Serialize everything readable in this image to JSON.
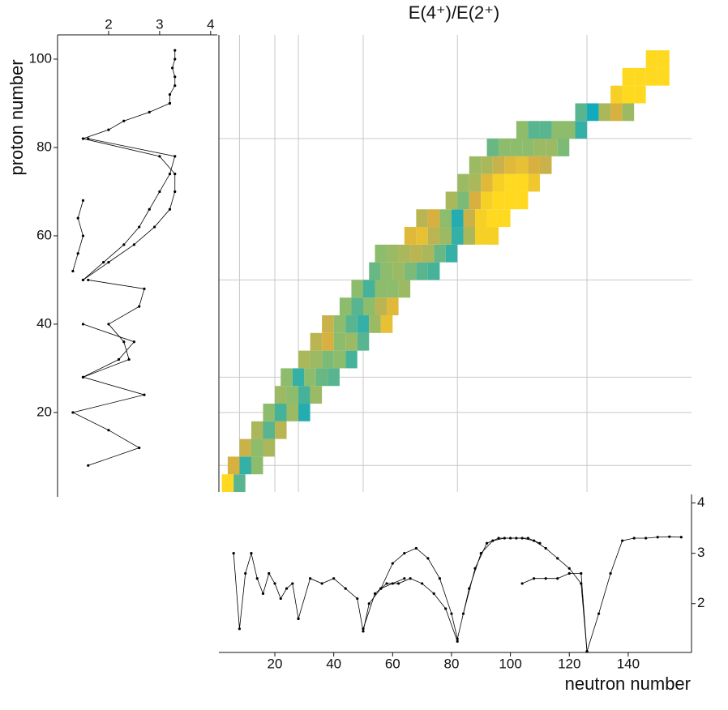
{
  "chart_data": [
    {
      "type": "heatmap",
      "title": "E(4⁺)/E(2⁺)",
      "ylabel": "proton number",
      "xlim": [
        1,
        161.5
      ],
      "ylim": [
        2,
        105.5
      ],
      "yticks": [
        20,
        40,
        60,
        80,
        100
      ],
      "xgrid": [
        8,
        20,
        28,
        50,
        82,
        126
      ],
      "ygrid": [
        8,
        20,
        28,
        50,
        82
      ],
      "colorscale": [
        [
          1.5,
          "#00a8c8"
        ],
        [
          2.3,
          "#8cbc6c"
        ],
        [
          2.8,
          "#d8b040"
        ],
        [
          3.3,
          "#ffd820"
        ]
      ],
      "cells": [
        [
          4,
          4,
          3.3
        ],
        [
          8,
          4,
          2.0
        ],
        [
          6,
          8,
          2.8
        ],
        [
          10,
          8,
          1.8
        ],
        [
          14,
          8,
          2.3
        ],
        [
          10,
          12,
          2.7
        ],
        [
          14,
          12,
          2.3
        ],
        [
          18,
          12,
          2.5
        ],
        [
          14,
          16,
          2.5
        ],
        [
          18,
          16,
          2.0
        ],
        [
          22,
          16,
          2.6
        ],
        [
          18,
          20,
          2.3
        ],
        [
          22,
          20,
          1.9
        ],
        [
          26,
          20,
          2.4
        ],
        [
          30,
          20,
          1.7
        ],
        [
          22,
          24,
          2.4
        ],
        [
          26,
          24,
          2.3
        ],
        [
          30,
          24,
          1.9
        ],
        [
          34,
          24,
          2.4
        ],
        [
          24,
          28,
          2.3
        ],
        [
          28,
          28,
          1.8
        ],
        [
          32,
          28,
          2.3
        ],
        [
          36,
          28,
          2.1
        ],
        [
          40,
          28,
          2.0
        ],
        [
          30,
          32,
          2.5
        ],
        [
          34,
          32,
          2.4
        ],
        [
          38,
          32,
          2.2
        ],
        [
          42,
          32,
          2.3
        ],
        [
          46,
          32,
          1.9
        ],
        [
          34,
          36,
          2.6
        ],
        [
          38,
          36,
          2.8
        ],
        [
          42,
          36,
          2.3
        ],
        [
          46,
          36,
          2.4
        ],
        [
          50,
          36,
          2.0
        ],
        [
          38,
          40,
          2.7
        ],
        [
          42,
          40,
          2.3
        ],
        [
          46,
          40,
          2.0
        ],
        [
          50,
          40,
          1.8
        ],
        [
          54,
          40,
          2.4
        ],
        [
          58,
          40,
          3.0
        ],
        [
          44,
          44,
          2.3
        ],
        [
          48,
          44,
          2.0
        ],
        [
          52,
          44,
          2.3
        ],
        [
          56,
          44,
          2.6
        ],
        [
          60,
          44,
          2.9
        ],
        [
          48,
          48,
          2.3
        ],
        [
          52,
          48,
          1.9
        ],
        [
          56,
          48,
          2.3
        ],
        [
          60,
          48,
          2.3
        ],
        [
          64,
          48,
          2.4
        ],
        [
          54,
          52,
          2.1
        ],
        [
          58,
          52,
          2.3
        ],
        [
          62,
          52,
          2.4
        ],
        [
          66,
          52,
          2.2
        ],
        [
          70,
          52,
          2.0
        ],
        [
          74,
          52,
          1.9
        ],
        [
          56,
          56,
          2.3
        ],
        [
          60,
          56,
          2.4
        ],
        [
          64,
          56,
          2.5
        ],
        [
          68,
          56,
          2.6
        ],
        [
          72,
          56,
          2.5
        ],
        [
          76,
          56,
          2.1
        ],
        [
          80,
          56,
          1.8
        ],
        [
          66,
          60,
          2.9
        ],
        [
          70,
          60,
          3.0
        ],
        [
          74,
          60,
          2.6
        ],
        [
          78,
          60,
          2.4
        ],
        [
          82,
          60,
          1.8
        ],
        [
          86,
          60,
          2.5
        ],
        [
          90,
          60,
          3.2
        ],
        [
          94,
          60,
          3.2
        ],
        [
          70,
          64,
          2.6
        ],
        [
          74,
          64,
          2.8
        ],
        [
          78,
          64,
          2.3
        ],
        [
          82,
          64,
          1.7
        ],
        [
          86,
          64,
          2.7
        ],
        [
          90,
          64,
          3.2
        ],
        [
          94,
          64,
          3.3
        ],
        [
          98,
          64,
          3.3
        ],
        [
          80,
          68,
          2.5
        ],
        [
          84,
          68,
          2.2
        ],
        [
          88,
          68,
          2.8
        ],
        [
          92,
          68,
          3.2
        ],
        [
          96,
          68,
          3.3
        ],
        [
          100,
          68,
          3.3
        ],
        [
          104,
          68,
          3.3
        ],
        [
          84,
          72,
          2.4
        ],
        [
          88,
          72,
          2.5
        ],
        [
          92,
          72,
          2.9
        ],
        [
          96,
          72,
          3.2
        ],
        [
          100,
          72,
          3.3
        ],
        [
          104,
          72,
          3.3
        ],
        [
          108,
          72,
          3.1
        ],
        [
          88,
          76,
          2.4
        ],
        [
          92,
          76,
          2.5
        ],
        [
          96,
          76,
          2.7
        ],
        [
          100,
          76,
          2.9
        ],
        [
          104,
          76,
          3.0
        ],
        [
          108,
          76,
          2.8
        ],
        [
          112,
          76,
          2.7
        ],
        [
          94,
          80,
          2.1
        ],
        [
          98,
          80,
          2.3
        ],
        [
          102,
          80,
          2.3
        ],
        [
          106,
          80,
          2.3
        ],
        [
          110,
          80,
          2.4
        ],
        [
          114,
          80,
          2.4
        ],
        [
          118,
          80,
          2.2
        ],
        [
          104,
          84,
          2.3
        ],
        [
          108,
          84,
          2.0
        ],
        [
          112,
          84,
          2.0
        ],
        [
          116,
          84,
          2.3
        ],
        [
          120,
          84,
          2.3
        ],
        [
          124,
          84,
          1.8
        ],
        [
          124,
          88,
          2.0
        ],
        [
          128,
          88,
          1.6
        ],
        [
          132,
          88,
          2.5
        ],
        [
          136,
          88,
          2.8
        ],
        [
          140,
          88,
          2.4
        ],
        [
          136,
          92,
          3.2
        ],
        [
          140,
          92,
          3.3
        ],
        [
          144,
          92,
          3.3
        ],
        [
          140,
          96,
          3.3
        ],
        [
          144,
          96,
          3.3
        ],
        [
          148,
          96,
          3.3
        ],
        [
          152,
          96,
          3.3
        ],
        [
          148,
          100,
          3.3
        ],
        [
          152,
          100,
          3.3
        ]
      ]
    },
    {
      "type": "line",
      "xlabel": "neutron number",
      "xlim": [
        1,
        161.5
      ],
      "xticks": [
        20,
        40,
        60,
        80,
        100,
        120,
        140
      ],
      "y2lim": [
        1.03,
        4.17
      ],
      "y2ticks": [
        2,
        3,
        4
      ],
      "color": "#000000",
      "series": [
        {
          "x": [
            6,
            8,
            10,
            12,
            14,
            16,
            18,
            20,
            22,
            24,
            26,
            28
          ],
          "values": [
            3.0,
            1.5,
            2.6,
            3.0,
            2.5,
            2.2,
            2.6,
            2.4,
            2.1,
            2.3,
            2.4,
            1.7
          ]
        },
        {
          "x": [
            28,
            32,
            36,
            40,
            44,
            48,
            50,
            52,
            56,
            60,
            64
          ],
          "values": [
            1.7,
            2.5,
            2.4,
            2.5,
            2.3,
            2.1,
            1.45,
            2.0,
            2.3,
            2.4,
            2.5
          ]
        },
        {
          "x": [
            50,
            54,
            58,
            62,
            66,
            70,
            74,
            78,
            82
          ],
          "values": [
            1.5,
            2.2,
            2.4,
            2.4,
            2.5,
            2.4,
            2.2,
            1.9,
            1.25
          ]
        },
        {
          "x": [
            56,
            60,
            64,
            68,
            72,
            76,
            80,
            82,
            86,
            90,
            94,
            98,
            102,
            106,
            110
          ],
          "values": [
            2.3,
            2.8,
            3.0,
            3.1,
            2.9,
            2.5,
            1.8,
            1.3,
            2.3,
            3.0,
            3.25,
            3.3,
            3.3,
            3.3,
            3.2
          ]
        },
        {
          "x": [
            84,
            88,
            92,
            96,
            100,
            104,
            108,
            112,
            116,
            120,
            124,
            126
          ],
          "values": [
            1.8,
            2.7,
            3.2,
            3.3,
            3.3,
            3.3,
            3.25,
            3.1,
            2.9,
            2.7,
            2.4,
            1.05
          ]
        },
        {
          "x": [
            104,
            108,
            112,
            116,
            120,
            124,
            126
          ],
          "values": [
            2.4,
            2.5,
            2.5,
            2.5,
            2.6,
            2.6,
            1.05
          ]
        },
        {
          "x": [
            126,
            130,
            134,
            138,
            142,
            146,
            150,
            154,
            158
          ],
          "values": [
            1.05,
            1.8,
            2.6,
            3.25,
            3.3,
            3.3,
            3.32,
            3.33,
            3.32
          ]
        }
      ]
    },
    {
      "type": "line",
      "xlim": [
        1,
        4.13
      ],
      "xticks": [
        2,
        3,
        4
      ],
      "ylim": [
        2,
        105.5
      ],
      "color": "#000000",
      "series": [
        {
          "x": [
            8,
            12,
            16,
            20,
            24,
            28,
            32,
            36,
            40
          ],
          "values": [
            1.6,
            2.6,
            2.0,
            1.3,
            2.7,
            1.5,
            2.2,
            2.5,
            1.5
          ]
        },
        {
          "x": [
            28,
            32,
            36,
            40,
            44,
            48,
            50
          ],
          "values": [
            1.5,
            2.4,
            2.3,
            2.0,
            2.6,
            2.7,
            1.6
          ]
        },
        {
          "x": [
            50,
            54,
            58,
            62,
            66,
            70,
            74,
            78,
            82
          ],
          "values": [
            1.5,
            2.0,
            2.5,
            2.9,
            3.2,
            3.3,
            3.3,
            3.0,
            1.5
          ]
        },
        {
          "x": [
            50,
            54,
            58,
            62,
            66,
            70,
            74,
            78,
            82
          ],
          "values": [
            1.5,
            1.9,
            2.3,
            2.6,
            2.8,
            3.0,
            3.2,
            3.3,
            1.6
          ]
        },
        {
          "x": [
            82,
            84,
            86,
            88,
            90
          ],
          "values": [
            1.5,
            2.0,
            2.3,
            2.8,
            3.2
          ]
        },
        {
          "x": [
            90,
            92,
            94,
            96,
            98,
            100,
            102
          ],
          "values": [
            3.2,
            3.2,
            3.3,
            3.3,
            3.25,
            3.3,
            3.3
          ]
        },
        {
          "x": [
            52,
            56,
            60,
            64,
            68
          ],
          "values": [
            1.3,
            1.4,
            1.5,
            1.4,
            1.5
          ]
        }
      ]
    }
  ]
}
